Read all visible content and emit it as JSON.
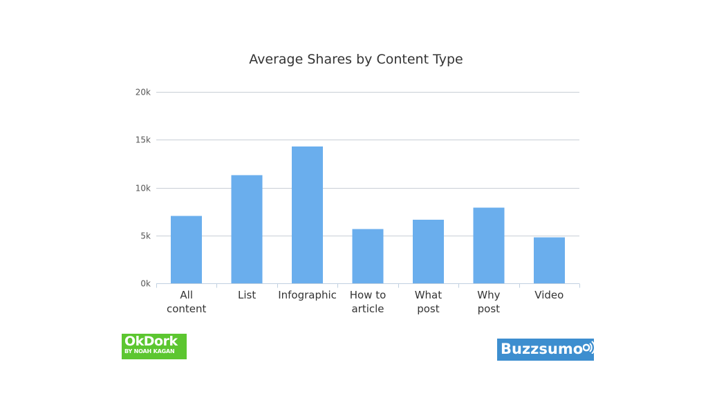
{
  "chart_data": {
    "type": "bar",
    "title": "Average Shares by Content Type",
    "xlabel": "",
    "ylabel": "",
    "categories": [
      [
        "All",
        "content"
      ],
      [
        "List"
      ],
      [
        "Infographic"
      ],
      [
        "How to",
        "article"
      ],
      [
        "What",
        "post"
      ],
      [
        "Why",
        "post"
      ],
      [
        "Video"
      ]
    ],
    "values": [
      7050,
      11300,
      14300,
      5650,
      6650,
      7900,
      4800
    ],
    "ylim": [
      0,
      20000
    ],
    "yticks": [
      0,
      5000,
      10000,
      15000,
      20000
    ],
    "ytick_labels": [
      "0k",
      "5k",
      "10k",
      "15k",
      "20k"
    ],
    "grid": true,
    "legend": "none",
    "bar_color": "#6aaeed"
  },
  "logos": {
    "okdork": {
      "main": "OkDork",
      "sub": "BY NOAH KAGAN",
      "color": "#5cc630"
    },
    "buzzsumo": {
      "text": "Buzzsumo",
      "icon": "signal-icon",
      "color": "#3d8ecf"
    }
  }
}
